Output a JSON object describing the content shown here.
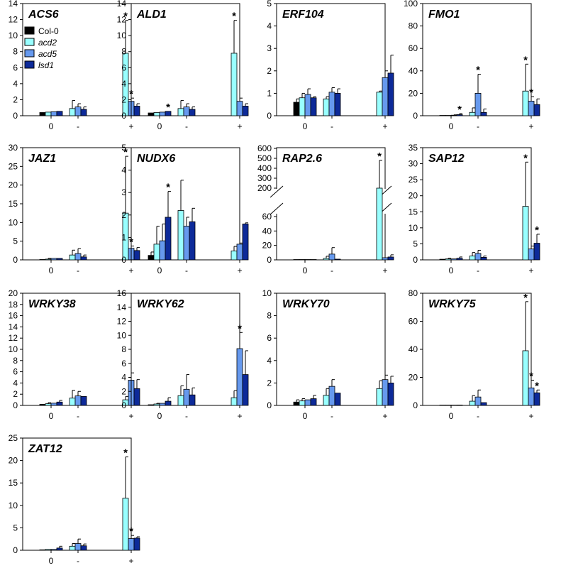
{
  "figure": {
    "legend": [
      "Col-0",
      "acd2",
      "acd5",
      "lsd1"
    ]
  },
  "colors": {
    "Col-0": "#000000",
    "acd2": "#99ffff",
    "acd5": "#6699ee",
    "lsd1": "#0d2a99"
  },
  "chart_data": [
    {
      "type": "bar",
      "title": "ACS6",
      "categories": [
        "0",
        "-",
        "+"
      ],
      "ylim": [
        0,
        14
      ],
      "yticks": [
        0,
        2,
        4,
        6,
        8,
        10,
        12,
        14
      ],
      "series": [
        {
          "name": "Col-0",
          "values": [
            0.4,
            null,
            null
          ],
          "errors": [
            0,
            0,
            0
          ]
        },
        {
          "name": "acd2",
          "values": [
            0.45,
            0.9,
            7.8
          ],
          "errors": [
            0,
            1.0,
            4.1
          ]
        },
        {
          "name": "acd5",
          "values": [
            0.5,
            1.1,
            1.8
          ],
          "errors": [
            0,
            0.4,
            0.4
          ]
        },
        {
          "name": "lsd1",
          "values": [
            0.55,
            0.8,
            1.2
          ],
          "errors": [
            0,
            0.3,
            0.3
          ]
        }
      ],
      "stars": [
        [
          2,
          1
        ],
        [
          2,
          2
        ]
      ]
    },
    {
      "type": "bar",
      "title": "ALD1",
      "categories": [
        "0",
        "-",
        "+"
      ],
      "ylim": [
        0,
        14
      ],
      "yticks": [
        0,
        2,
        4,
        6,
        8,
        10,
        12,
        14
      ],
      "series": [
        {
          "name": "Col-0",
          "values": [
            0.35,
            null,
            null
          ],
          "errors": [
            0,
            0,
            0
          ]
        },
        {
          "name": "acd2",
          "values": [
            0.4,
            0.9,
            7.8
          ],
          "errors": [
            0,
            1.0,
            4.1
          ]
        },
        {
          "name": "acd5",
          "values": [
            0.45,
            1.1,
            1.8
          ],
          "errors": [
            0,
            0.4,
            0.4
          ]
        },
        {
          "name": "lsd1",
          "values": [
            0.55,
            0.8,
            1.2
          ],
          "errors": [
            0,
            0.3,
            0.3
          ]
        }
      ],
      "stars": [
        [
          0,
          3
        ],
        [
          2,
          1
        ]
      ]
    },
    {
      "type": "bar",
      "title": "ERF104",
      "categories": [
        "0",
        "-",
        "+"
      ],
      "ylim": [
        0,
        5
      ],
      "yticks": [
        0,
        1,
        2,
        3,
        4,
        5
      ],
      "series": [
        {
          "name": "Col-0",
          "values": [
            0.6,
            null,
            null
          ],
          "errors": [
            0.15,
            0,
            0
          ]
        },
        {
          "name": "acd2",
          "values": [
            0.8,
            0.75,
            1.05
          ],
          "errors": [
            0.2,
            0.1,
            0.05
          ]
        },
        {
          "name": "acd5",
          "values": [
            0.95,
            1.05,
            1.7
          ],
          "errors": [
            0.25,
            0.2,
            0.3
          ]
        },
        {
          "name": "lsd1",
          "values": [
            0.8,
            1.0,
            1.9
          ],
          "errors": [
            0.05,
            0.2,
            0.8
          ]
        }
      ],
      "stars": []
    },
    {
      "type": "bar",
      "title": "FMO1",
      "categories": [
        "0",
        "-",
        "+"
      ],
      "ylim": [
        0,
        100
      ],
      "yticks": [
        0,
        20,
        40,
        60,
        80,
        100
      ],
      "series": [
        {
          "name": "Col-0",
          "values": [
            0,
            null,
            null
          ],
          "errors": [
            0,
            0,
            0
          ]
        },
        {
          "name": "acd2",
          "values": [
            0.3,
            3,
            22
          ],
          "errors": [
            0,
            4,
            24
          ]
        },
        {
          "name": "acd5",
          "values": [
            0.5,
            20,
            13
          ],
          "errors": [
            0.3,
            17,
            4
          ]
        },
        {
          "name": "lsd1",
          "values": [
            1,
            3,
            10
          ],
          "errors": [
            1,
            3,
            5
          ]
        }
      ],
      "stars": [
        [
          0,
          3
        ],
        [
          1,
          2
        ],
        [
          2,
          1
        ],
        [
          2,
          2
        ]
      ]
    },
    {
      "type": "bar",
      "title": "JAZ1",
      "categories": [
        "0",
        "-",
        "+"
      ],
      "ylim": [
        0,
        30
      ],
      "yticks": [
        0,
        5,
        10,
        15,
        20,
        25,
        30
      ],
      "series": [
        {
          "name": "Col-0",
          "values": [
            0.1,
            null,
            null
          ],
          "errors": [
            0,
            0,
            0
          ]
        },
        {
          "name": "acd2",
          "values": [
            0.2,
            1.3,
            12.5
          ],
          "errors": [
            0.2,
            1.3,
            15.2
          ]
        },
        {
          "name": "acd5",
          "values": [
            0.4,
            1.7,
            3.1
          ],
          "errors": [
            0,
            1.3,
            0.6
          ]
        },
        {
          "name": "lsd1",
          "values": [
            0.4,
            0.8,
            2.5
          ],
          "errors": [
            0,
            0.5,
            0.8
          ]
        }
      ],
      "stars": [
        [
          2,
          1
        ],
        [
          2,
          2
        ]
      ]
    },
    {
      "type": "bar",
      "title": "NUDX6",
      "categories": [
        "0",
        "-",
        "+"
      ],
      "ylim": [
        0,
        5
      ],
      "yticks": [
        0,
        1,
        2,
        3,
        4,
        5
      ],
      "series": [
        {
          "name": "Col-0",
          "values": [
            0.2,
            null,
            null
          ],
          "errors": [
            0.15,
            0,
            0
          ]
        },
        {
          "name": "acd2",
          "values": [
            0.7,
            2.2,
            0.4
          ],
          "errors": [
            0.8,
            1.35,
            0.2
          ]
        },
        {
          "name": "acd5",
          "values": [
            0.85,
            1.5,
            0.7
          ],
          "errors": [
            0.75,
            0.4,
            0.05
          ]
        },
        {
          "name": "lsd1",
          "values": [
            1.9,
            1.7,
            1.6
          ],
          "errors": [
            1.15,
            0.6,
            0.05
          ]
        }
      ],
      "stars": [
        [
          0,
          3
        ]
      ]
    },
    {
      "type": "bar",
      "title": "RAP2.6",
      "categories": [
        "0",
        "-",
        "+"
      ],
      "broken": true,
      "yticks_bottom": [
        0,
        20,
        40,
        60
      ],
      "yticks_top": [
        200,
        300,
        400,
        500,
        600
      ],
      "series": [
        {
          "name": "Col-0",
          "values": [
            0.3,
            null,
            null
          ],
          "errors": [
            0,
            0,
            0
          ]
        },
        {
          "name": "acd2",
          "values": [
            0.5,
            2,
            200
          ],
          "errors": [
            0,
            3,
            280
          ]
        },
        {
          "name": "acd5",
          "values": [
            0,
            8,
            3
          ],
          "errors": [
            0,
            9,
            0
          ]
        },
        {
          "name": "lsd1",
          "values": [
            0.3,
            1,
            4
          ],
          "errors": [
            0,
            0,
            3
          ]
        }
      ],
      "stars": [
        [
          2,
          1
        ]
      ]
    },
    {
      "type": "bar",
      "title": "SAP12",
      "categories": [
        "0",
        "-",
        "+"
      ],
      "ylim": [
        0,
        35
      ],
      "yticks": [
        0,
        5,
        10,
        15,
        20,
        25,
        30,
        35
      ],
      "series": [
        {
          "name": "Col-0",
          "values": [
            0.2,
            null,
            null
          ],
          "errors": [
            0,
            0,
            0
          ]
        },
        {
          "name": "acd2",
          "values": [
            0.3,
            1.2,
            16.7
          ],
          "errors": [
            0.2,
            1.1,
            13.8
          ]
        },
        {
          "name": "acd5",
          "values": [
            0.3,
            2,
            3.4
          ],
          "errors": [
            0,
            1,
            0.9
          ]
        },
        {
          "name": "lsd1",
          "values": [
            0.5,
            0.8,
            5.2
          ],
          "errors": [
            0.4,
            0.4,
            2.8
          ]
        }
      ],
      "stars": [
        [
          2,
          1
        ],
        [
          2,
          3
        ]
      ]
    },
    {
      "type": "bar",
      "title": "WRKY38",
      "categories": [
        "0",
        "-",
        "+"
      ],
      "ylim": [
        0,
        20
      ],
      "yticks": [
        0,
        2,
        4,
        6,
        8,
        10,
        12,
        14,
        16,
        18,
        20
      ],
      "series": [
        {
          "name": "Col-0",
          "values": [
            0.2,
            null,
            null
          ],
          "errors": [
            0,
            0,
            0
          ]
        },
        {
          "name": "acd2",
          "values": [
            0.3,
            1.3,
            1.0
          ],
          "errors": [
            0.2,
            1.4,
            0.6
          ]
        },
        {
          "name": "acd5",
          "values": [
            0.4,
            1.7,
            4.5
          ],
          "errors": [
            0,
            0.8,
            1.3
          ]
        },
        {
          "name": "lsd1",
          "values": [
            0.6,
            1.6,
            3.0
          ],
          "errors": [
            0.3,
            0,
            1.6
          ]
        }
      ],
      "stars": []
    },
    {
      "type": "bar",
      "title": "WRKY62",
      "categories": [
        "0",
        "-",
        "+"
      ],
      "ylim": [
        0,
        16
      ],
      "yticks": [
        0,
        2,
        4,
        6,
        8,
        10,
        12,
        14,
        16
      ],
      "series": [
        {
          "name": "Col-0",
          "values": [
            0.1,
            null,
            null
          ],
          "errors": [
            0,
            0,
            0
          ]
        },
        {
          "name": "acd2",
          "values": [
            0.2,
            1.4,
            1.1
          ],
          "errors": [
            0.1,
            1.4,
            1.0
          ]
        },
        {
          "name": "acd5",
          "values": [
            0.3,
            2.3,
            8.1
          ],
          "errors": [
            0,
            2.1,
            2.3
          ]
        },
        {
          "name": "lsd1",
          "values": [
            0.6,
            1.5,
            4.4
          ],
          "errors": [
            0.5,
            1.0,
            3.4
          ]
        }
      ],
      "stars": [
        [
          2,
          2
        ]
      ]
    },
    {
      "type": "bar",
      "title": "WRKY70",
      "categories": [
        "0",
        "-",
        "+"
      ],
      "ylim": [
        0,
        10
      ],
      "yticks": [
        0,
        2,
        4,
        6,
        8,
        10
      ],
      "series": [
        {
          "name": "Col-0",
          "values": [
            0.3,
            null,
            null
          ],
          "errors": [
            0.2,
            0,
            0
          ]
        },
        {
          "name": "acd2",
          "values": [
            0.4,
            0.9,
            1.5
          ],
          "errors": [
            0.2,
            0.6,
            0.7
          ]
        },
        {
          "name": "acd5",
          "values": [
            0.5,
            1.7,
            2.3
          ],
          "errors": [
            0,
            0.6,
            0.4
          ]
        },
        {
          "name": "lsd1",
          "values": [
            0.6,
            1.1,
            2.0
          ],
          "errors": [
            0.3,
            0,
            0.6
          ]
        }
      ],
      "stars": []
    },
    {
      "type": "bar",
      "title": "WRKY75",
      "categories": [
        "0",
        "-",
        "+"
      ],
      "ylim": [
        0,
        80
      ],
      "yticks": [
        0,
        20,
        40,
        60,
        80
      ],
      "series": [
        {
          "name": "Col-0",
          "values": [
            0.1,
            null,
            null
          ],
          "errors": [
            0,
            0,
            0
          ]
        },
        {
          "name": "acd2",
          "values": [
            0.2,
            3,
            39
          ],
          "errors": [
            0,
            4,
            35
          ]
        },
        {
          "name": "acd5",
          "values": [
            0.2,
            6,
            12.5
          ],
          "errors": [
            0,
            5,
            5.5
          ]
        },
        {
          "name": "lsd1",
          "values": [
            0.3,
            2,
            9
          ],
          "errors": [
            0,
            0,
            2
          ]
        }
      ],
      "stars": [
        [
          2,
          1
        ],
        [
          2,
          2
        ],
        [
          2,
          3
        ]
      ]
    },
    {
      "type": "bar",
      "title": "ZAT12",
      "categories": [
        "0",
        "-",
        "+"
      ],
      "ylim": [
        0,
        25
      ],
      "yticks": [
        0,
        5,
        10,
        15,
        20,
        25
      ],
      "series": [
        {
          "name": "Col-0",
          "values": [
            0.1,
            null,
            null
          ],
          "errors": [
            0,
            0,
            0
          ]
        },
        {
          "name": "acd2",
          "values": [
            0.2,
            0.9,
            11.6
          ],
          "errors": [
            0,
            0.6,
            9.2
          ]
        },
        {
          "name": "acd5",
          "values": [
            0.2,
            1.5,
            2.6
          ],
          "errors": [
            0,
            1.0,
            0.7
          ]
        },
        {
          "name": "lsd1",
          "values": [
            0.5,
            1.0,
            2.7
          ],
          "errors": [
            0.4,
            0.4,
            0.3
          ]
        }
      ],
      "stars": [
        [
          2,
          1
        ],
        [
          2,
          2
        ]
      ]
    }
  ]
}
